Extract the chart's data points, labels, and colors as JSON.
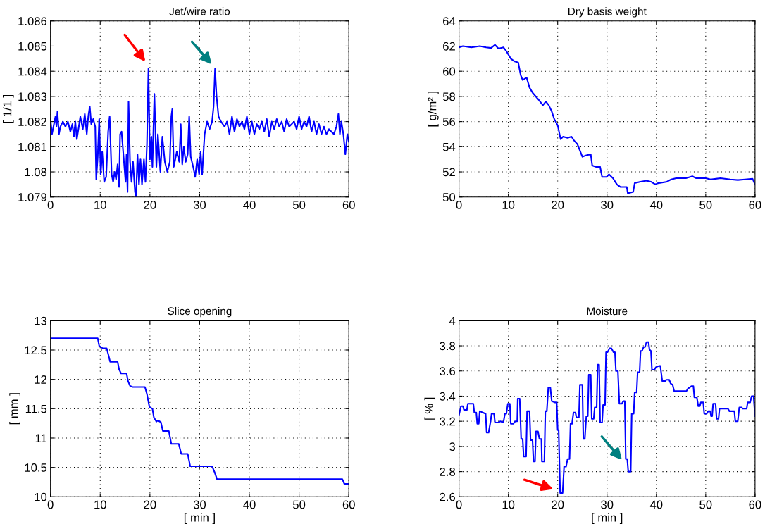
{
  "chart_data": [
    {
      "type": "line",
      "title": "Jet/wire ratio",
      "ylabel": "[ 1/1 ]",
      "xlim": [
        0,
        60
      ],
      "xticks": [
        0,
        10,
        20,
        30,
        40,
        50,
        60
      ],
      "ylim": [
        1.079,
        1.086
      ],
      "yticks": [
        1.079,
        {
          "value": 1.08,
          "label": "1.08"
        },
        1.081,
        1.082,
        1.083,
        1.084,
        1.085,
        1.086
      ],
      "grid": true,
      "series": [
        {
          "color": "#0000ff",
          "x": [
            0,
            0.3,
            0.7,
            1.0,
            1.2,
            1.4,
            1.7,
            2.0,
            2.5,
            3.0,
            3.5,
            4.0,
            4.4,
            4.7,
            5.0,
            5.3,
            5.7,
            6.0,
            6.5,
            6.9,
            7.3,
            7.6,
            7.9,
            8.2,
            8.6,
            9.0,
            9.2,
            9.5,
            9.8,
            10.1,
            10.4,
            10.8,
            11.2,
            11.6,
            11.9,
            12.3,
            12.6,
            12.9,
            13.2,
            13.5,
            13.8,
            14.0,
            14.3,
            14.7,
            15.1,
            15.3,
            15.5,
            15.7,
            16.0,
            16.3,
            16.6,
            17.0,
            17.2,
            17.5,
            17.8,
            18.1,
            18.4,
            18.8,
            19.1,
            19.4,
            19.7,
            20.0,
            20.3,
            20.5,
            20.9,
            21.3,
            21.6,
            22.1,
            22.5,
            23.0,
            23.5,
            24.0,
            24.3,
            24.5,
            24.8,
            25.4,
            25.9,
            26.2,
            26.5,
            26.8,
            27.2,
            27.6,
            27.9,
            28.2,
            28.7,
            29.1,
            29.5,
            29.9,
            30.2,
            30.5,
            31.0,
            31.5,
            32.0,
            32.5,
            32.8,
            33.1,
            33.4,
            33.8,
            34.3,
            35.0,
            35.5,
            36.0,
            36.5,
            37.0,
            37.5,
            38.0,
            38.5,
            39.0,
            39.5,
            40.0,
            40.5,
            41.0,
            41.5,
            42.0,
            42.5,
            43.0,
            43.5,
            44.0,
            44.5,
            45.0,
            45.5,
            46.0,
            46.5,
            47.0,
            47.5,
            48.0,
            48.5,
            49.0,
            49.5,
            50.0,
            50.5,
            51.0,
            51.5,
            52.0,
            52.5,
            53.0,
            53.5,
            54.0,
            54.5,
            55.0,
            55.5,
            56.0,
            56.5,
            57.0,
            57.5,
            57.9,
            58.2,
            58.5,
            58.9,
            59.3,
            59.7,
            60.0
          ],
          "values": [
            1.0821,
            1.0815,
            1.0819,
            1.0822,
            1.0818,
            1.0824,
            1.0815,
            1.0818,
            1.082,
            1.0818,
            1.082,
            1.0816,
            1.0819,
            1.0814,
            1.082,
            1.0813,
            1.0818,
            1.0822,
            1.0817,
            1.0823,
            1.0815,
            1.0822,
            1.0826,
            1.0819,
            1.0821,
            1.0818,
            1.0797,
            1.0806,
            1.0821,
            1.0799,
            1.0808,
            1.0796,
            1.0798,
            1.0816,
            1.0822,
            1.0799,
            1.0796,
            1.08,
            1.0797,
            1.0803,
            1.0794,
            1.0815,
            1.0816,
            1.0806,
            1.0796,
            1.0807,
            1.0792,
            1.0828,
            1.0804,
            1.0796,
            1.0804,
            1.0792,
            1.079,
            1.0807,
            1.0795,
            1.0805,
            1.0795,
            1.0805,
            1.0796,
            1.0811,
            1.0841,
            1.0805,
            1.0814,
            1.0802,
            1.0831,
            1.0802,
            1.0815,
            1.08,
            1.0814,
            1.0804,
            1.08,
            1.0804,
            1.0822,
            1.0825,
            1.0802,
            1.0808,
            1.0804,
            1.0819,
            1.0803,
            1.081,
            1.0804,
            1.0807,
            1.0822,
            1.0806,
            1.0802,
            1.0798,
            1.0805,
            1.0799,
            1.0808,
            1.0799,
            1.0815,
            1.082,
            1.0817,
            1.082,
            1.0826,
            1.0841,
            1.083,
            1.0822,
            1.082,
            1.0818,
            1.082,
            1.0815,
            1.0822,
            1.0816,
            1.0821,
            1.0818,
            1.082,
            1.0817,
            1.0822,
            1.0815,
            1.082,
            1.0815,
            1.0819,
            1.0817,
            1.082,
            1.0816,
            1.0821,
            1.0814,
            1.082,
            1.0817,
            1.0821,
            1.0818,
            1.082,
            1.0816,
            1.0821,
            1.0818,
            1.0819,
            1.082,
            1.0817,
            1.0822,
            1.0817,
            1.082,
            1.0818,
            1.0822,
            1.0816,
            1.082,
            1.0815,
            1.0819,
            1.0815,
            1.0818,
            1.0815,
            1.0817,
            1.0816,
            1.0815,
            1.0818,
            1.0823,
            1.0815,
            1.082,
            1.0815,
            1.0807,
            1.0815,
            1.0812
          ]
        }
      ]
    },
    {
      "type": "line",
      "title": "Dry basis weight",
      "ylabel": "[ g/m² ]",
      "xlim": [
        0,
        60
      ],
      "xticks": [
        0,
        10,
        20,
        30,
        40,
        50,
        60
      ],
      "ylim": [
        50,
        64
      ],
      "yticks": [
        50,
        52,
        54,
        56,
        58,
        60,
        62,
        64
      ],
      "grid": true,
      "series": [
        {
          "color": "#0000ff",
          "x": [
            0,
            0.8,
            2.5,
            4.2,
            5.5,
            6.5,
            7.3,
            8.0,
            9.0,
            9.6,
            10.5,
            11.2,
            12.0,
            12.5,
            12.9,
            13.7,
            14.3,
            14.9,
            16.0,
            17.0,
            17.6,
            18.2,
            18.8,
            19.3,
            20.0,
            20.6,
            21.1,
            22.0,
            22.8,
            23.3,
            24.0,
            25.0,
            25.7,
            26.7,
            27.0,
            27.8,
            28.6,
            29.0,
            29.9,
            30.4,
            31.2,
            32.0,
            32.7,
            34.0,
            34.2,
            35.3,
            35.6,
            36.6,
            38.0,
            39.0,
            39.8,
            40.3,
            42.0,
            43.0,
            44.0,
            46.0,
            47.3,
            48.0,
            50.0,
            51.0,
            53.0,
            55.0,
            56.5,
            58.0,
            59.5,
            60.0
          ],
          "values": [
            61.9,
            62.0,
            61.9,
            62.0,
            61.9,
            61.85,
            62.1,
            61.8,
            61.9,
            61.6,
            61.0,
            60.8,
            60.7,
            59.7,
            59.3,
            59.5,
            58.7,
            58.3,
            57.8,
            57.3,
            57.6,
            57.3,
            56.8,
            56.2,
            55.7,
            54.6,
            54.8,
            54.7,
            54.8,
            54.5,
            54.2,
            53.2,
            53.3,
            53.4,
            52.5,
            52.4,
            52.4,
            51.6,
            51.6,
            51.8,
            51.5,
            51.0,
            50.8,
            50.8,
            50.3,
            50.4,
            51.1,
            51.2,
            51.3,
            51.2,
            51.0,
            51.1,
            51.2,
            51.4,
            51.5,
            51.5,
            51.65,
            51.5,
            51.5,
            51.4,
            51.5,
            51.4,
            51.35,
            51.4,
            51.45,
            51.0
          ]
        }
      ]
    },
    {
      "type": "line",
      "title": "Slice opening",
      "xlabel": "[ min ]",
      "ylabel": "[ mm ]",
      "xlim": [
        0,
        60
      ],
      "xticks": [
        0,
        10,
        20,
        30,
        40,
        50,
        60
      ],
      "ylim": [
        10,
        13
      ],
      "yticks": [
        10,
        10.5,
        11,
        11.5,
        12,
        12.5,
        13
      ],
      "grid": true,
      "series": [
        {
          "color": "#0000ff",
          "x": [
            0,
            9.5,
            9.8,
            10.5,
            11.3,
            11.7,
            12.0,
            13.5,
            13.8,
            14.2,
            15.3,
            15.6,
            16.0,
            16.5,
            19.0,
            19.4,
            19.9,
            20.5,
            20.8,
            21.3,
            21.6,
            22.2,
            22.6,
            23.8,
            24.3,
            25.8,
            26.3,
            27.6,
            28.1,
            32.5,
            33.0,
            33.5,
            58.7,
            59.1,
            60.0
          ],
          "values": [
            12.7,
            12.7,
            12.57,
            12.53,
            12.53,
            12.4,
            12.3,
            12.3,
            12.17,
            12.1,
            12.1,
            11.97,
            11.89,
            11.87,
            11.87,
            11.75,
            11.53,
            11.5,
            11.35,
            11.28,
            11.3,
            11.27,
            11.12,
            11.12,
            10.9,
            10.9,
            10.73,
            10.73,
            10.52,
            10.52,
            10.42,
            10.3,
            10.3,
            10.22,
            10.22
          ]
        }
      ]
    },
    {
      "type": "line",
      "title": "Moisture",
      "xlabel": "[ min ]",
      "ylabel": "[ % ]",
      "xlim": [
        0,
        60
      ],
      "xticks": [
        0,
        10,
        20,
        30,
        40,
        50,
        60
      ],
      "ylim": [
        2.6,
        4
      ],
      "yticks": [
        2.6,
        2.8,
        {
          "value": 3,
          "label": "3"
        },
        3.2,
        3.4,
        3.6,
        3.8,
        {
          "value": 4,
          "label": "4"
        }
      ],
      "grid": true,
      "series": [
        {
          "color": "#0000ff",
          "x": [
            0,
            0.4,
            0.8,
            1.0,
            1.6,
            1.8,
            2.9,
            3.1,
            3.5,
            3.7,
            4.0,
            4.2,
            4.8,
            5.4,
            5.6,
            6.0,
            6.4,
            6.6,
            7.1,
            7.3,
            8.0,
            8.4,
            9.0,
            9.3,
            9.6,
            9.9,
            10.3,
            10.5,
            11.0,
            11.4,
            11.8,
            11.9,
            12.3,
            12.6,
            12.9,
            13.1,
            13.6,
            13.8,
            14.3,
            14.5,
            14.9,
            15.1,
            15.4,
            15.6,
            16.0,
            16.3,
            16.7,
            16.8,
            17.3,
            17.5,
            17.8,
            18.1,
            18.5,
            18.8,
            19.4,
            19.8,
            20.0,
            20.2,
            20.5,
            21.0,
            21.3,
            21.7,
            22.0,
            22.4,
            22.6,
            22.9,
            23.2,
            23.6,
            23.8,
            24.3,
            24.5,
            25.0,
            25.2,
            25.5,
            25.8,
            26.1,
            26.3,
            26.7,
            26.9,
            27.3,
            27.5,
            27.9,
            28.1,
            28.4,
            28.6,
            29.0,
            29.2,
            29.6,
            29.8,
            30.1,
            30.5,
            30.9,
            31.3,
            31.6,
            31.8,
            32.2,
            32.5,
            33.0,
            33.3,
            33.6,
            33.8,
            34.1,
            34.3,
            34.8,
            35.0,
            35.4,
            35.6,
            36.0,
            36.2,
            36.6,
            36.8,
            37.1,
            37.4,
            37.7,
            38.0,
            38.4,
            38.6,
            38.9,
            39.1,
            39.6,
            39.9,
            40.5,
            40.8,
            41.2,
            41.8,
            42.0,
            42.6,
            42.9,
            43.3,
            43.6,
            46.1,
            46.4,
            46.8,
            47.1,
            47.5,
            47.7,
            48.2,
            48.5,
            48.8,
            49.0,
            49.5,
            49.7,
            50.2,
            50.5,
            50.9,
            51.1,
            51.3,
            51.5,
            52.0,
            52.2,
            52.6,
            52.8,
            54.5,
            54.8,
            55.8,
            56.0,
            56.5,
            56.8,
            57.3,
            57.5,
            58.3,
            58.5,
            59.0,
            59.3,
            59.7,
            60.0
          ],
          "values": [
            3.25,
            3.32,
            3.32,
            3.29,
            3.29,
            3.34,
            3.34,
            3.27,
            3.27,
            3.18,
            3.18,
            3.28,
            3.27,
            3.26,
            3.11,
            3.11,
            3.2,
            3.26,
            3.26,
            3.19,
            3.19,
            3.2,
            3.19,
            3.26,
            3.26,
            3.34,
            3.34,
            3.18,
            3.18,
            3.2,
            3.2,
            3.38,
            3.38,
            3.06,
            3.06,
            2.92,
            2.92,
            3.28,
            3.28,
            3.05,
            3.05,
            2.88,
            2.88,
            3.12,
            3.12,
            3.06,
            3.06,
            2.88,
            2.88,
            3.28,
            3.28,
            3.47,
            3.47,
            3.36,
            3.35,
            3.35,
            3.13,
            3.13,
            2.63,
            2.63,
            2.84,
            2.84,
            2.9,
            2.9,
            3.18,
            3.18,
            3.27,
            3.27,
            3.23,
            3.23,
            3.49,
            3.49,
            3.06,
            3.06,
            3.24,
            3.24,
            3.57,
            3.57,
            3.22,
            3.22,
            3.31,
            3.31,
            3.65,
            3.65,
            3.19,
            3.19,
            3.33,
            3.33,
            3.75,
            3.75,
            3.78,
            3.78,
            3.75,
            3.75,
            3.6,
            3.6,
            3.34,
            3.34,
            3.36,
            3.36,
            2.9,
            2.9,
            2.8,
            2.8,
            3.26,
            3.26,
            3.43,
            3.43,
            3.59,
            3.59,
            3.76,
            3.76,
            3.79,
            3.79,
            3.83,
            3.83,
            3.77,
            3.76,
            3.61,
            3.61,
            3.63,
            3.64,
            3.64,
            3.52,
            3.52,
            3.53,
            3.53,
            3.5,
            3.49,
            3.44,
            3.44,
            3.46,
            3.47,
            3.48,
            3.48,
            3.39,
            3.39,
            3.32,
            3.32,
            3.35,
            3.35,
            3.26,
            3.26,
            3.28,
            3.28,
            3.24,
            3.24,
            3.34,
            3.34,
            3.22,
            3.22,
            3.3,
            3.3,
            3.28,
            3.28,
            3.2,
            3.2,
            3.31,
            3.31,
            3.3,
            3.3,
            3.35,
            3.35,
            3.4,
            3.4,
            3.24
          ]
        }
      ]
    }
  ]
}
